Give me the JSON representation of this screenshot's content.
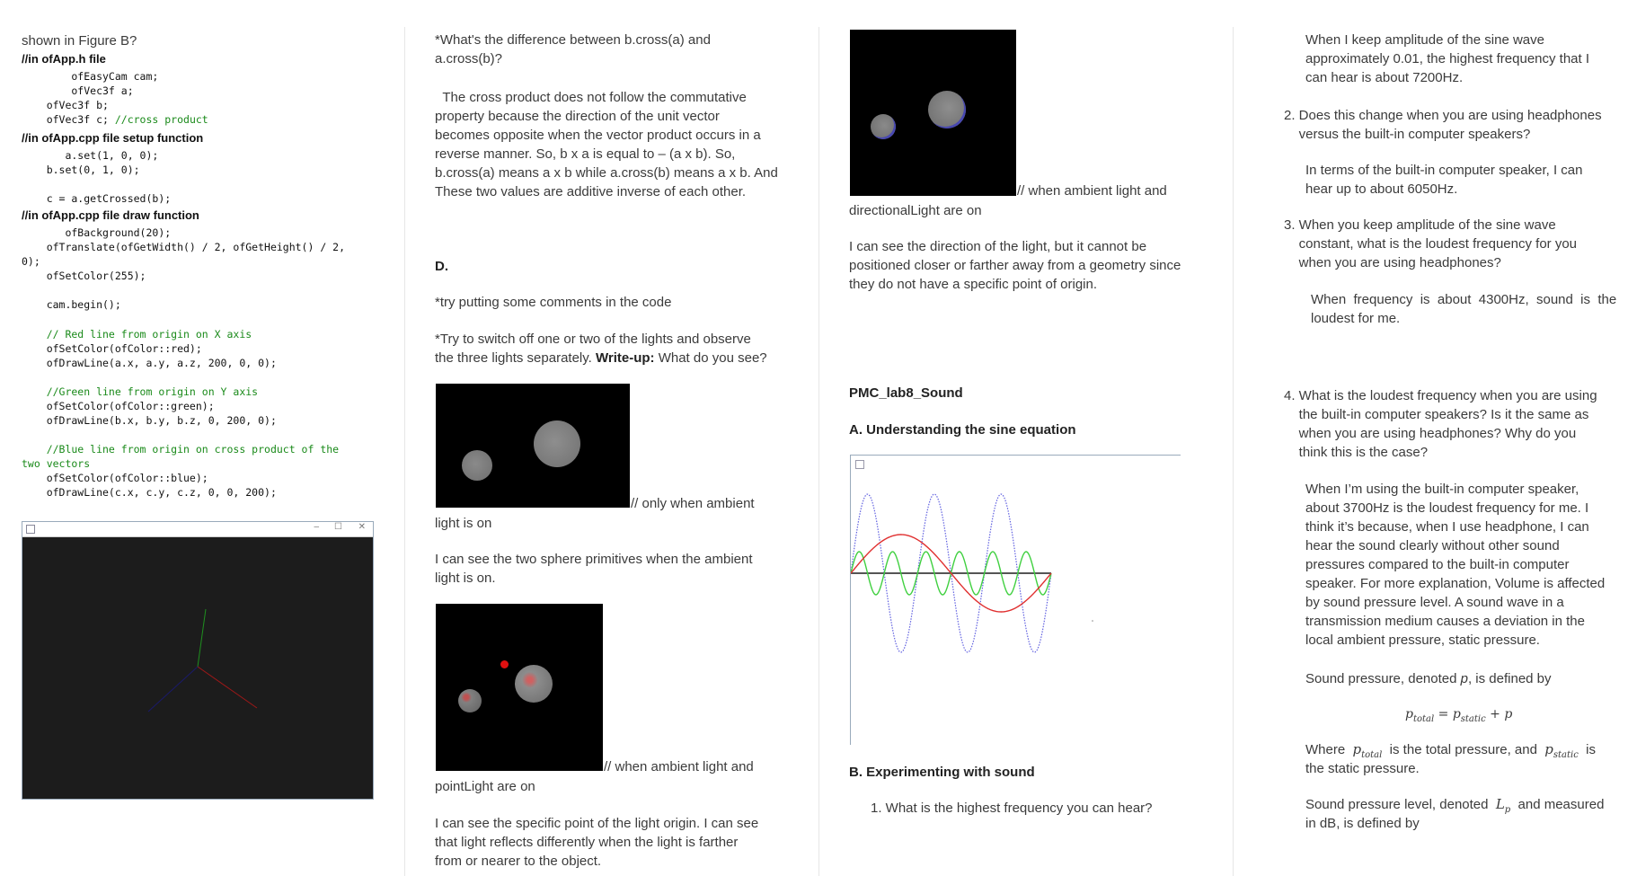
{
  "col1": {
    "intro": "shown in Figure B?",
    "h_app_h": "//in ofApp.h file",
    "code_h": [
      "        ofEasyCam cam;",
      "        ofVec3f a;",
      "    ofVec3f b;",
      "    ofVec3f c; "
    ],
    "code_h_comment": "//cross product",
    "h_setup": "//in ofApp.cpp file setup function",
    "code_setup": "       a.set(1, 0, 0);\n    b.set(0, 1, 0);\n\n    c = a.getCrossed(b);",
    "h_draw": "//in ofApp.cpp file draw function",
    "code_draw1": "       ofBackground(20);\n    ofTranslate(ofGetWidth() / 2, ofGetHeight() / 2,\n0);\n    ofSetColor(255);\n\n    cam.begin();",
    "comment_red": "    // Red line from origin on X axis",
    "code_red": "    ofSetColor(ofColor::red);\n    ofDrawLine(a.x, a.y, a.z, 200, 0, 0);",
    "comment_green": "    //Green line from origin on Y axis",
    "code_green": "    ofSetColor(ofColor::green);\n    ofDrawLine(b.x, b.y, b.z, 0, 200, 0);",
    "comment_blue": "    //Blue line from origin on cross product of the\ntwo vectors",
    "code_blue": "    ofSetColor(ofColor::blue);\n    ofDrawLine(c.x, c.y, c.z, 0, 0, 200);",
    "window_controls": [
      "–",
      "☐",
      "✕"
    ]
  },
  "col2": {
    "question": "*What's the difference between b.cross(a) and\na.cross(b)?",
    "answer": "  The cross product does not follow the commutative\nproperty because the direction of the unit vector\nbecomes opposite when the vector product occurs in a\nreverse manner. So, b x a is equal to – (a x b). So,\nb.cross(a) means a x b while a.cross(b) means a x b. And\nThese two values are additive inverse of each other.",
    "section_d": "D.",
    "try_comments": "*try putting some comments in the code",
    "try_switch": "*Try to switch off one or two of the lights and observe\nthe three lights separately. ",
    "writeup_label": "Write-up:",
    "writeup_q": " What do you see?",
    "caption_ambient": "// only when ambient",
    "caption_ambient2": "light is on",
    "desc_ambient": "I can see the two sphere primitives when the ambient\nlight is on.",
    "caption_point": "// when ambient light and",
    "caption_point2": "pointLight are on",
    "desc_point": "I can see the specific point of the light origin. I can see\nthat light reflects differently when the light is farther\nfrom or nearer to the object."
  },
  "col3": {
    "caption_dir": "// when ambient light and",
    "caption_dir2": "directionalLight are on",
    "desc_dir": "I can see the direction of the light, but it cannot be\npositioned closer or farther away from a geometry since\nthey do not have a specific point of origin.",
    "lab_title": "PMC_lab8_Sound",
    "section_a": "A. Understanding the sine equation",
    "section_b": "B. Experimenting with sound",
    "q1": "1. What is the highest frequency you can hear?",
    "colors": {
      "red": "#e03030",
      "green": "#40d040",
      "blue": "#6060e0",
      "axis": "#555555"
    }
  },
  "col4": {
    "a1": "When I keep amplitude of the sine wave\napproximately 0.01, the highest frequency that I\ncan hear is about 7200Hz.",
    "q2": "2. Does this change when you are using headphones\n    versus the built-in computer speakers?",
    "a2": "In terms of the built-in computer speaker, I can\nhear up to about 6050Hz.",
    "q3": "3. When you keep amplitude of the sine wave\n    constant, what is the loudest frequency for you\n    when you are using headphones?",
    "a3": "When  frequency  is  about  4300Hz,  sound  is  the\nloudest for me.",
    "q4": "4. What is the loudest frequency when you are using\n    the built-in computer speakers? Is it the same as\n    when you are using headphones? Why do you\n    think this is the case?",
    "a4": "When I’m using the built-in computer speaker,\nabout 3700Hz is the loudest frequency for me. I\nthink it’s because, when I use headphone, I can\nhear the sound clearly without other sound\npressures compared to the built-in computer\nspeaker. For more explanation, Volume is affected\nby sound pressure level. A sound wave in a\ntransmission medium causes a deviation in the\nlocal ambient pressure, static pressure.",
    "sp_def_pre": "Sound pressure, denoted ",
    "sp_def_var": "p",
    "sp_def_post": ", is defined by",
    "eq_lhs": "p",
    "eq_lhs_sub": "total",
    "eq_mid": " = p",
    "eq_mid_sub": "static",
    "eq_rhs": " + p",
    "where_pre": "Where  ",
    "where_p": "p",
    "where_p_sub": "total",
    "where_mid": "  is the total pressure, and  ",
    "where_ps": "p",
    "where_ps_sub": "static",
    "where_post": "  is",
    "where_line2": "the static pressure.",
    "spl_pre": "Sound pressure level, denoted  ",
    "spl_var": "L",
    "spl_sub": "p",
    "spl_post": "  and measured",
    "spl_line2": "in dB, is defined by"
  }
}
